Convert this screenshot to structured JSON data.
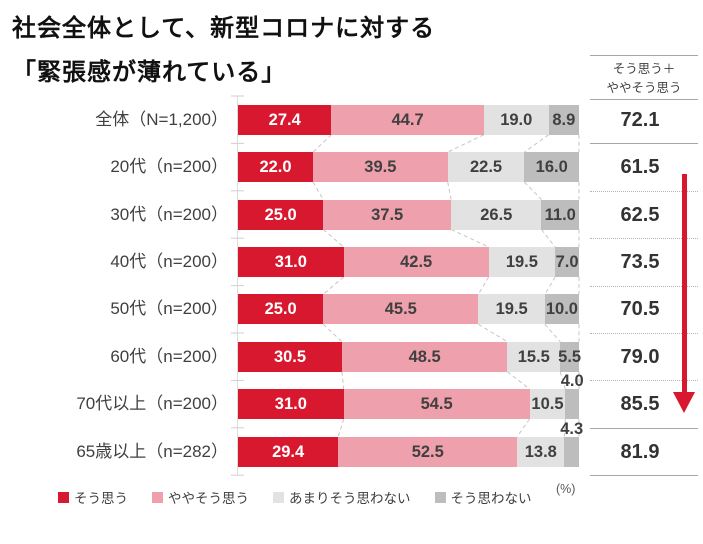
{
  "title": {
    "line1": "社会全体として、新型コロナに対する",
    "line2": "「緊張感が薄れている」"
  },
  "chart_data": {
    "type": "bar",
    "stacked": true,
    "orientation": "horizontal",
    "unit_label": "(%)",
    "xlim": [
      0,
      100
    ],
    "categories": [
      "全体（N=1,200）",
      "20代（n=200）",
      "30代（n=200）",
      "40代（n=200）",
      "50代（n=200）",
      "60代（n=200）",
      "70代以上（n=200）",
      "65歳以上（n=282）"
    ],
    "series": [
      {
        "name": "そう思う",
        "color": "#d8182e",
        "values": [
          27.4,
          22.0,
          25.0,
          31.0,
          25.0,
          30.5,
          31.0,
          29.4
        ]
      },
      {
        "name": "ややそう思う",
        "color": "#eea0ac",
        "values": [
          44.7,
          39.5,
          37.5,
          42.5,
          45.5,
          48.5,
          54.5,
          52.5
        ]
      },
      {
        "name": "あまりそう思わない",
        "color": "#e2e2e2",
        "values": [
          19.0,
          22.5,
          26.5,
          19.5,
          19.5,
          15.5,
          10.5,
          13.8
        ]
      },
      {
        "name": "そう思わない",
        "color": "#bdbdbd",
        "values": [
          8.9,
          16.0,
          11.0,
          7.0,
          10.0,
          5.5,
          4.0,
          4.3
        ]
      }
    ],
    "totals": {
      "header_line1": "そう思う＋",
      "header_line2": "ややそう思う",
      "values": [
        72.1,
        61.5,
        62.5,
        73.5,
        70.5,
        79.0,
        85.5,
        81.9
      ]
    },
    "annotations": {
      "trend_arrow": "down"
    }
  },
  "colors": {
    "accent_red": "#d8182e",
    "label_text": "#404040",
    "total_text": "#333333",
    "separator_solid": "#a6a6a6",
    "separator_dotted": "#b3b3b3",
    "connector_dash": "#c6c6c6",
    "axis_tick": "#cfcfcf"
  }
}
